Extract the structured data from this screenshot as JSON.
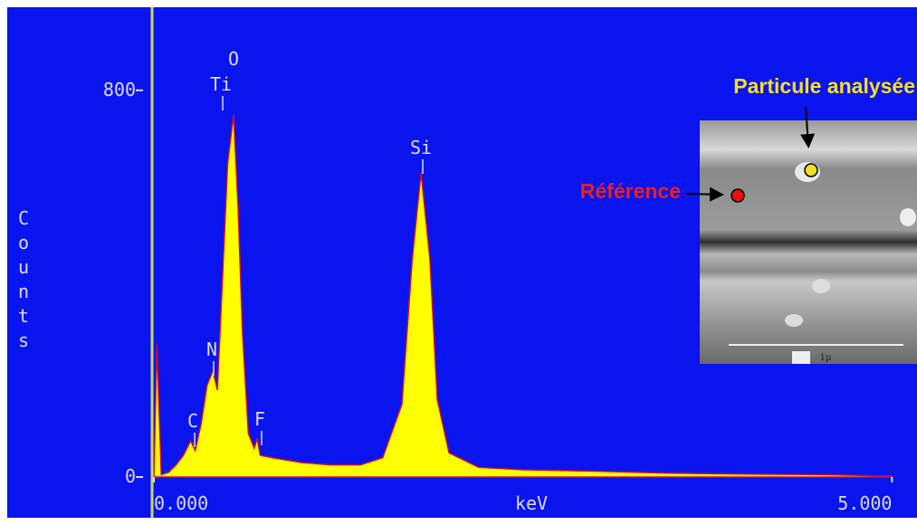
{
  "chart_data": {
    "type": "area",
    "color": "#ffff00",
    "edge_color": "#c8102e",
    "x_label": "keV",
    "y_label": "Counts",
    "xlim": [
      0,
      5.17
    ],
    "ylim": [
      0,
      970
    ],
    "xticks": [
      {
        "value": 0,
        "label": "0.000"
      },
      {
        "value": 5,
        "label": "5.000"
      }
    ],
    "yticks": [
      0,
      800
    ],
    "x": [
      0.0,
      0.02,
      0.05,
      0.1,
      0.15,
      0.2,
      0.25,
      0.28,
      0.32,
      0.36,
      0.4,
      0.43,
      0.46,
      0.5,
      0.54,
      0.57,
      0.6,
      0.64,
      0.68,
      0.7,
      0.72,
      0.8,
      1.0,
      1.2,
      1.4,
      1.55,
      1.68,
      1.75,
      1.81,
      1.87,
      1.92,
      2.0,
      2.2,
      2.5,
      3.0,
      3.5,
      4.0,
      4.5,
      5.0
    ],
    "values": [
      0,
      275,
      5,
      10,
      25,
      45,
      75,
      55,
      110,
      190,
      220,
      180,
      380,
      650,
      750,
      560,
      300,
      90,
      60,
      80,
      45,
      40,
      30,
      25,
      25,
      40,
      150,
      450,
      630,
      450,
      160,
      50,
      20,
      15,
      12,
      8,
      6,
      5,
      2
    ],
    "peak_labels": [
      "C",
      "N",
      "O",
      "Ti",
      "F",
      "Si"
    ],
    "annotations": [
      "Particule analysée",
      "Référence",
      "1µ"
    ]
  }
}
